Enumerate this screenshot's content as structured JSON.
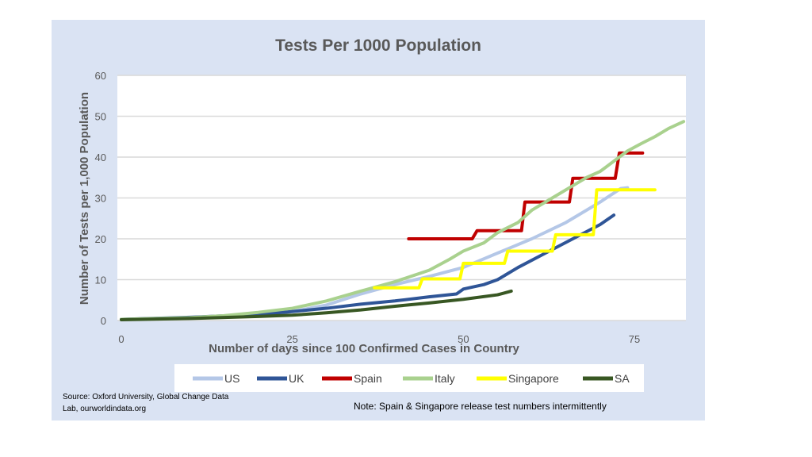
{
  "chart_data": {
    "type": "line",
    "title": "Tests Per 1000 Population",
    "xlabel": "Number of days since 100 Confirmed Cases in Country",
    "ylabel": "Number of Tests per 1,000 Population",
    "xlim": [
      0,
      83
    ],
    "ylim": [
      0,
      60
    ],
    "xticks": [
      0,
      25,
      50,
      75
    ],
    "yticks": [
      0,
      10,
      20,
      30,
      40,
      50,
      60
    ],
    "grid": true,
    "legend": "bottom",
    "series": [
      {
        "name": "US",
        "color": "#b4c7e7",
        "points": [
          [
            0,
            0.3
          ],
          [
            10,
            0.5
          ],
          [
            20,
            1.2
          ],
          [
            25,
            2.2
          ],
          [
            30,
            3.8
          ],
          [
            35,
            6.5
          ],
          [
            40,
            8.8
          ],
          [
            45,
            10.8
          ],
          [
            50,
            13
          ],
          [
            55,
            16.5
          ],
          [
            60,
            20
          ],
          [
            65,
            24
          ],
          [
            70,
            29
          ],
          [
            73,
            32.3
          ],
          [
            74,
            32.5
          ]
        ]
      },
      {
        "name": "UK",
        "color": "#2f5597",
        "points": [
          [
            0,
            0.3
          ],
          [
            10,
            0.8
          ],
          [
            20,
            1.5
          ],
          [
            25,
            2.2
          ],
          [
            30,
            3
          ],
          [
            35,
            4
          ],
          [
            40,
            4.8
          ],
          [
            45,
            5.8
          ],
          [
            49,
            6.5
          ],
          [
            50,
            7.7
          ],
          [
            53,
            8.8
          ],
          [
            55,
            10
          ],
          [
            58,
            13
          ],
          [
            62,
            16.5
          ],
          [
            66,
            20
          ],
          [
            70,
            23.5
          ],
          [
            72,
            25.8
          ]
        ]
      },
      {
        "name": "Spain",
        "color": "#c00000",
        "points": [
          [
            42,
            20
          ],
          [
            51.3,
            20
          ],
          [
            52,
            22
          ],
          [
            58.5,
            22
          ],
          [
            59,
            29
          ],
          [
            65.5,
            29
          ],
          [
            66,
            34.8
          ],
          [
            72.2,
            34.8
          ],
          [
            72.8,
            41
          ],
          [
            76.2,
            41
          ]
        ]
      },
      {
        "name": "Italy",
        "color": "#a9d18e",
        "points": [
          [
            0,
            0.3
          ],
          [
            10,
            0.7
          ],
          [
            15,
            1.2
          ],
          [
            20,
            2
          ],
          [
            25,
            3
          ],
          [
            30,
            4.8
          ],
          [
            35,
            7.2
          ],
          [
            40,
            9.5
          ],
          [
            45,
            12.3
          ],
          [
            48,
            15
          ],
          [
            50,
            17
          ],
          [
            53,
            19
          ],
          [
            55,
            21.5
          ],
          [
            58,
            24
          ],
          [
            60,
            27
          ],
          [
            63,
            30
          ],
          [
            66,
            33
          ],
          [
            68,
            35
          ],
          [
            70,
            36.5
          ],
          [
            72,
            39
          ],
          [
            74,
            41.5
          ],
          [
            76,
            43.3
          ],
          [
            78,
            45
          ],
          [
            80,
            47
          ],
          [
            82.2,
            48.7
          ]
        ]
      },
      {
        "name": "Singapore",
        "color": "#ffff00",
        "points": [
          [
            37,
            8
          ],
          [
            43.5,
            8
          ],
          [
            44,
            10.2
          ],
          [
            49.5,
            10.2
          ],
          [
            50,
            14
          ],
          [
            56,
            14
          ],
          [
            56.5,
            17
          ],
          [
            63,
            17
          ],
          [
            63.5,
            21
          ],
          [
            69,
            21
          ],
          [
            69.5,
            32
          ],
          [
            78,
            32
          ]
        ]
      },
      {
        "name": "SA",
        "color": "#385723",
        "points": [
          [
            0,
            0.2
          ],
          [
            10,
            0.5
          ],
          [
            20,
            1
          ],
          [
            25,
            1.3
          ],
          [
            30,
            1.9
          ],
          [
            35,
            2.6
          ],
          [
            40,
            3.5
          ],
          [
            45,
            4.3
          ],
          [
            50,
            5.2
          ],
          [
            55,
            6.3
          ],
          [
            57,
            7.2
          ]
        ]
      }
    ]
  },
  "source": [
    "Source: Oxford University, Global Change Data",
    "Lab, ourworldindata.org"
  ],
  "note": "Note: Spain & Singapore release test numbers intermittently"
}
